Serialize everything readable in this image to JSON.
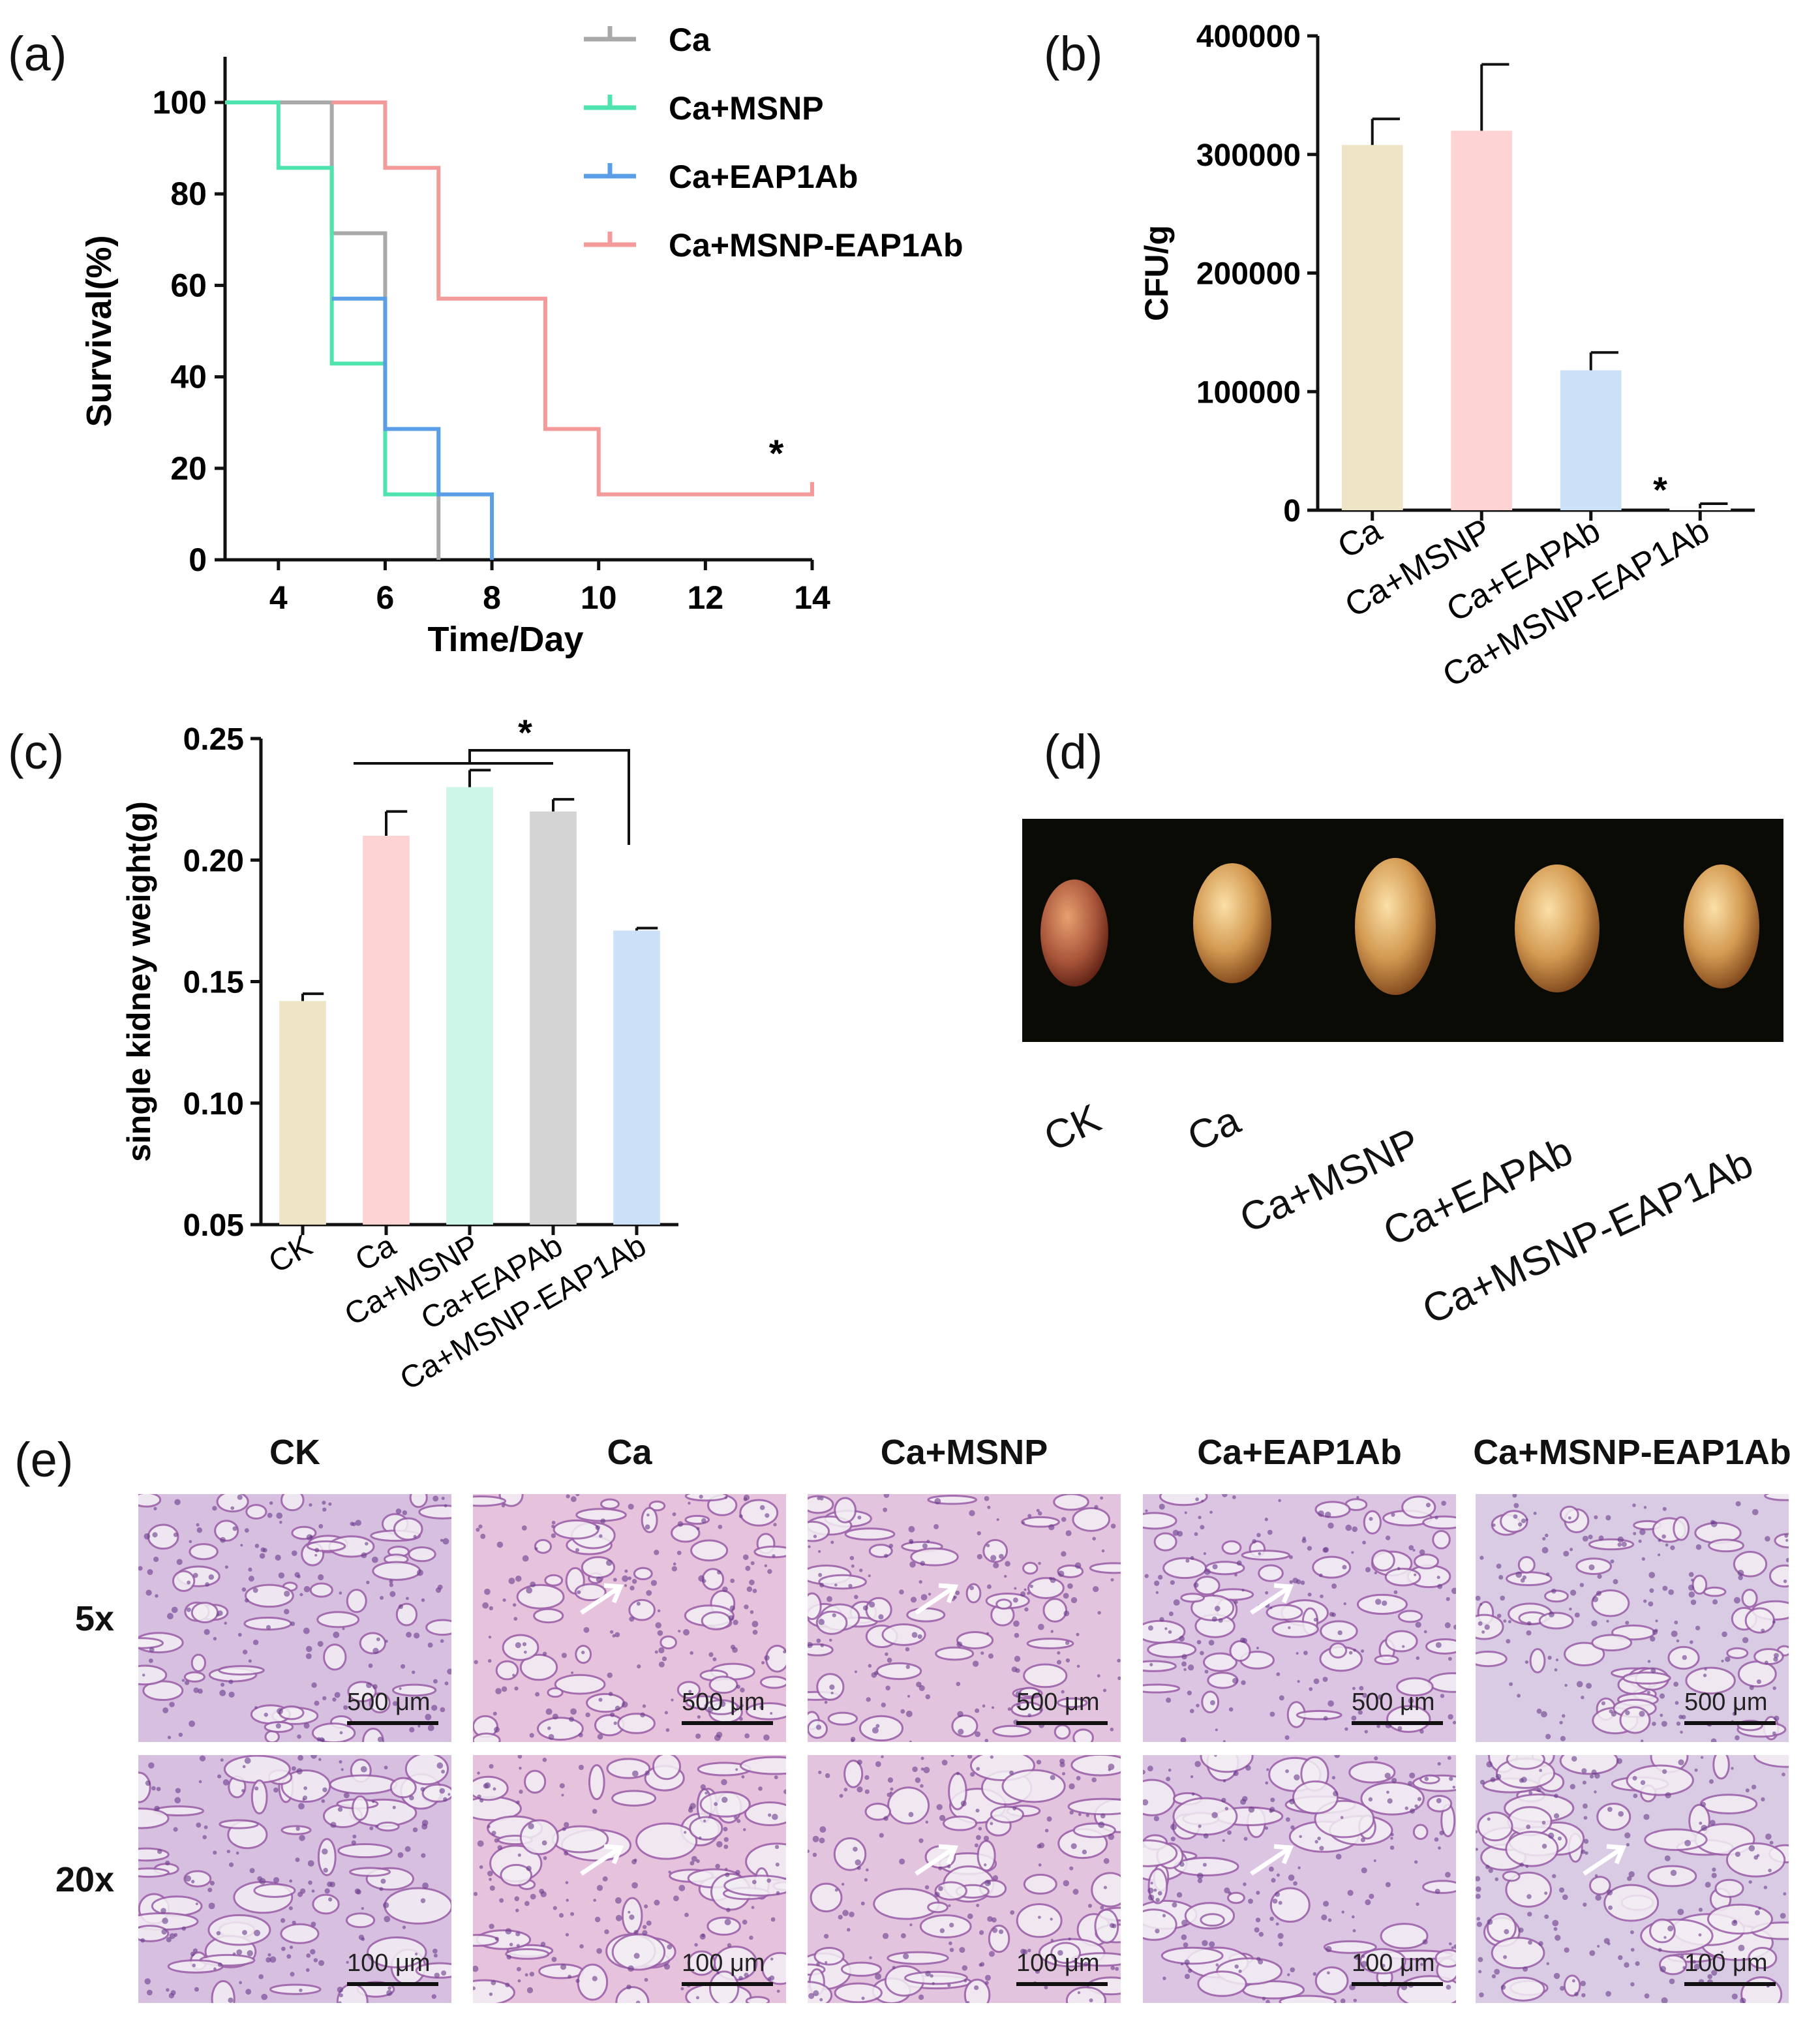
{
  "panels": {
    "a": "(a)",
    "b": "(b)",
    "c": "(c)",
    "d": "(d)",
    "e": "(e)"
  },
  "chart_a": {
    "type": "line",
    "xlabel": "Time/Day",
    "ylabel": "Survival(%)",
    "xlim": [
      3,
      14
    ],
    "ylim": [
      0,
      100
    ],
    "xticks": [
      "4",
      "6",
      "8",
      "10",
      "12",
      "14"
    ],
    "yticks": [
      "0",
      "20",
      "40",
      "60",
      "80",
      "100"
    ],
    "significance": "*",
    "series": [
      {
        "name": "Ca",
        "color": "#a9a9a9",
        "steps": [
          [
            3,
            100
          ],
          [
            5,
            100
          ],
          [
            5,
            71.4
          ],
          [
            6,
            71.4
          ],
          [
            6,
            28.6
          ],
          [
            7,
            28.6
          ],
          [
            7,
            0
          ]
        ]
      },
      {
        "name": "Ca+MSNP",
        "color": "#4fe3ad",
        "steps": [
          [
            3,
            100
          ],
          [
            4,
            100
          ],
          [
            4,
            85.7
          ],
          [
            5,
            85.7
          ],
          [
            5,
            42.9
          ],
          [
            6,
            42.9
          ],
          [
            6,
            14.3
          ],
          [
            7,
            14.3
          ]
        ]
      },
      {
        "name": "Ca+EAP1Ab",
        "color": "#5a9ee8",
        "steps": [
          [
            5,
            57.1
          ],
          [
            6,
            57.1
          ],
          [
            6,
            28.6
          ],
          [
            7,
            28.6
          ],
          [
            7,
            14.3
          ],
          [
            8,
            14.3
          ],
          [
            8,
            0
          ]
        ]
      },
      {
        "name": "Ca+MSNP-EAP1Ab",
        "color": "#f59a9a",
        "steps": [
          [
            5,
            100
          ],
          [
            6,
            100
          ],
          [
            6,
            85.7
          ],
          [
            7,
            85.7
          ],
          [
            7,
            57.1
          ],
          [
            9,
            57.1
          ],
          [
            9,
            28.6
          ],
          [
            10,
            28.6
          ],
          [
            10,
            14.3
          ],
          [
            14,
            14.3
          ],
          [
            14,
            17
          ]
        ]
      }
    ]
  },
  "chart_b": {
    "type": "bar",
    "ylabel": "CFU/g",
    "ylim": [
      0,
      400000
    ],
    "yticks": [
      "0",
      "100000",
      "200000",
      "300000",
      "400000"
    ],
    "categories": [
      "Ca",
      "Ca+MSNP",
      "Ca+EAPAb",
      "Ca+MSNP-EAP1Ab"
    ],
    "values": [
      308000,
      320000,
      118000,
      1500
    ],
    "errors": [
      22000,
      56000,
      15000,
      4000
    ],
    "colors": [
      "#eee5c6",
      "#fdd3d3",
      "#cce0f7",
      "#ffffff"
    ],
    "significance": "*"
  },
  "chart_c": {
    "type": "bar",
    "ylabel": "single kidney weight(g)",
    "ylim": [
      0.05,
      0.25
    ],
    "yticks": [
      "0.05",
      "0.10",
      "0.15",
      "0.20",
      "0.25"
    ],
    "categories": [
      "CK",
      "Ca",
      "Ca+MSNP",
      "Ca+EAPAb",
      "Ca+MSNP-EAP1Ab"
    ],
    "values": [
      0.142,
      0.21,
      0.23,
      0.22,
      0.171
    ],
    "errors": [
      0.003,
      0.01,
      0.007,
      0.005,
      0.001
    ],
    "colors": [
      "#eee5c6",
      "#fdd3d3",
      "#cdf6e8",
      "#d4d4d4",
      "#cce0f7"
    ],
    "significance": "*"
  },
  "panel_d": {
    "labels": [
      "CK",
      "Ca",
      "Ca+MSNP",
      "Ca+EAPAb",
      "Ca+MSNP-EAP1Ab"
    ]
  },
  "panel_e": {
    "columns": [
      "CK",
      "Ca",
      "Ca+MSNP",
      "Ca+EAP1Ab",
      "Ca+MSNP-EAP1Ab"
    ],
    "rows": [
      "5x",
      "20x"
    ],
    "scale_5x": "500 μm",
    "scale_20x": "100 μm"
  }
}
